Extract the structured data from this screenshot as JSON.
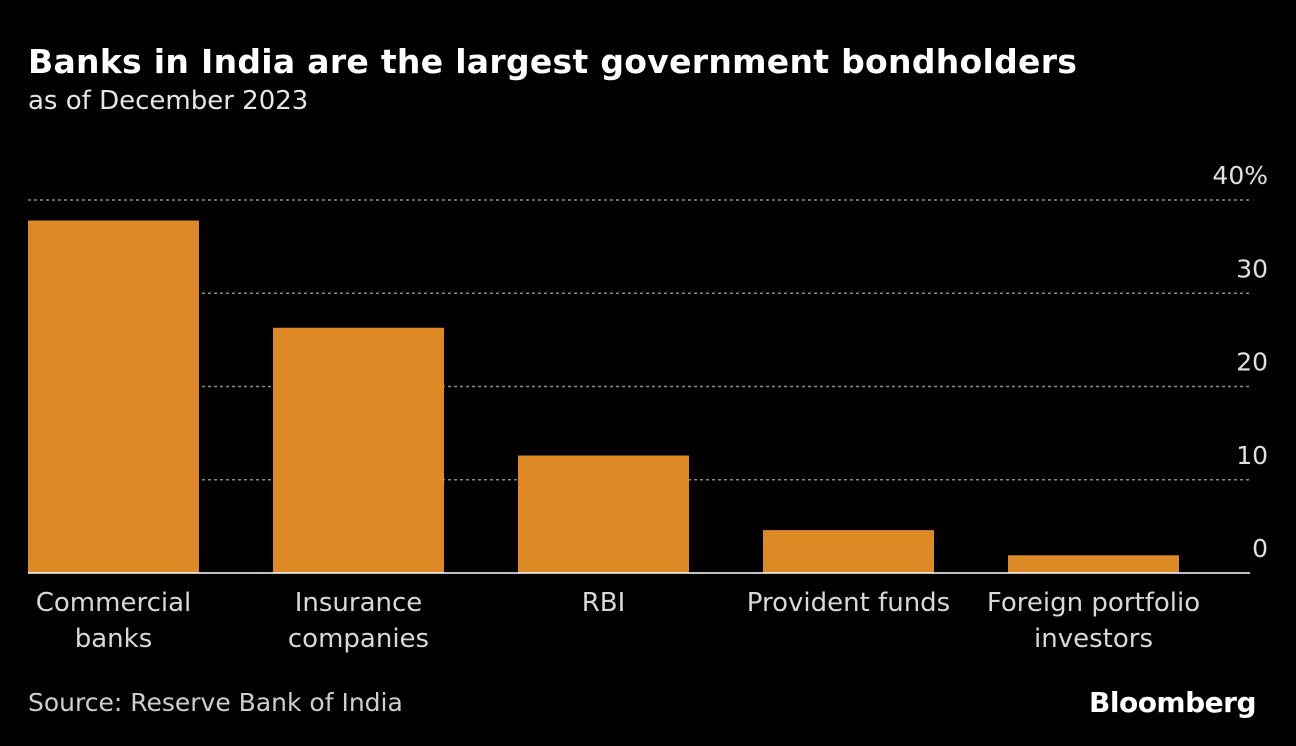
{
  "title": "Banks in India are the largest government bondholders",
  "subtitle": "as of December 2023",
  "source": "Source: Reserve Bank of India",
  "logo": "Bloomberg",
  "colors": {
    "bar": "#DD8A26",
    "background": "#000000",
    "grid": "#8a8a8a"
  },
  "chart_data": {
    "type": "bar",
    "categories": [
      [
        "Commercial",
        "banks"
      ],
      [
        "Insurance",
        "companies"
      ],
      [
        "RBI"
      ],
      [
        "Provident funds"
      ],
      [
        "Foreign portfolio",
        "investors"
      ]
    ],
    "values": [
      37.8,
      26.3,
      12.6,
      4.6,
      1.9
    ],
    "ylim": [
      0,
      40
    ],
    "yticks": [
      0,
      10,
      20,
      30,
      40
    ],
    "ytick_labels": [
      "0",
      "10",
      "20",
      "30",
      "40%"
    ],
    "grid": true,
    "yaxis_position": "right"
  }
}
